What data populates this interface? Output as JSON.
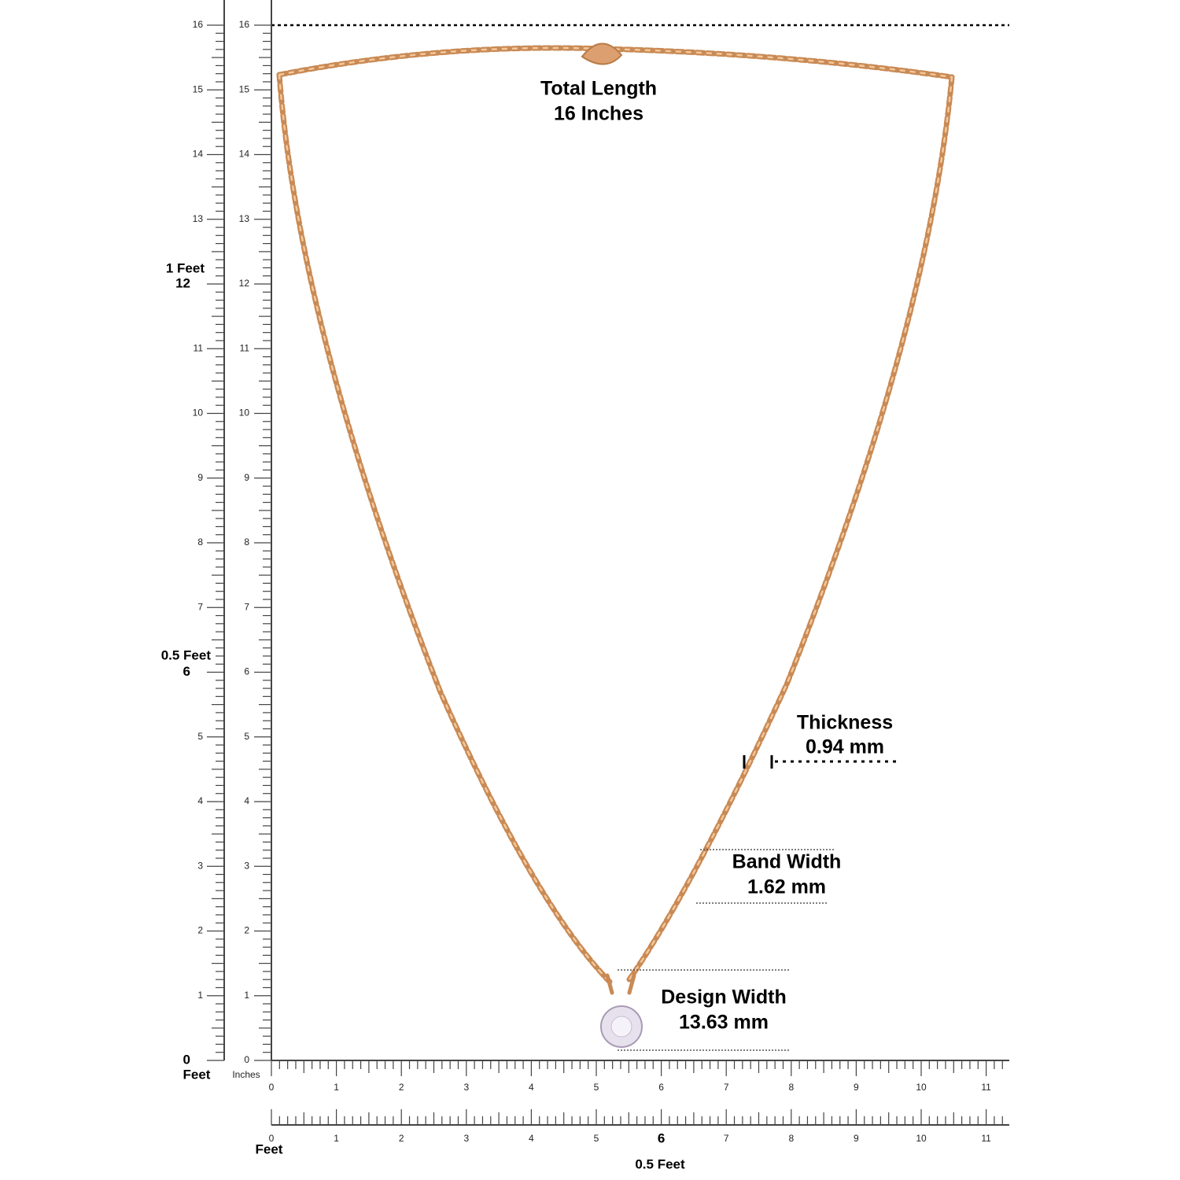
{
  "header": {
    "title": "Total Length",
    "length": "16 Inches"
  },
  "annotations": {
    "thickness": {
      "label": "Thickness",
      "value": "0.94 mm"
    },
    "band_width": {
      "label": "Band Width",
      "value": "1.62 mm"
    },
    "design_width": {
      "label": "Design Width",
      "value": "13.63 mm"
    }
  },
  "left_ruler": {
    "unit": "Feet",
    "labels": [
      0,
      1,
      2,
      3,
      4,
      5,
      6,
      7,
      8,
      9,
      10,
      11,
      12,
      13,
      14,
      15,
      16
    ],
    "half_foot": "0.5 Feet",
    "one_foot": "1 Feet"
  },
  "inch_ruler": {
    "unit": "Inches",
    "labels": [
      0,
      1,
      2,
      3,
      4,
      5,
      6,
      7,
      8,
      9,
      10,
      11,
      12,
      13,
      14,
      15,
      16
    ]
  },
  "bottom_inch_ruler": {
    "labels": [
      0,
      1,
      2,
      3,
      4,
      5,
      6,
      7,
      8,
      9,
      10,
      11
    ]
  },
  "bottom_feet_ruler": {
    "unit": "Feet",
    "labels": [
      0,
      1,
      2,
      3,
      4,
      5,
      6,
      7,
      8,
      9,
      10,
      11
    ],
    "half_foot": "0.5 Feet"
  }
}
